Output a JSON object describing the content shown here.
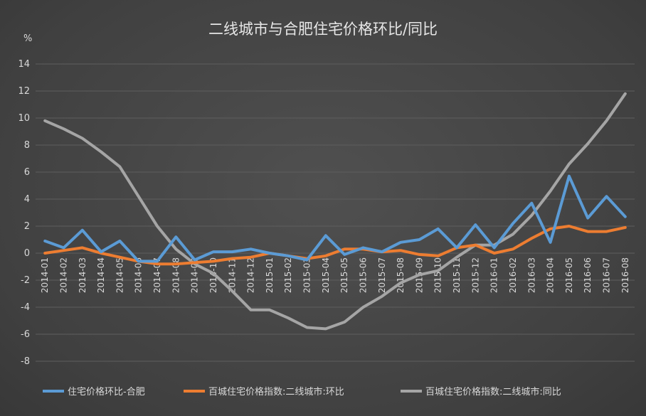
{
  "chart_data": {
    "type": "line",
    "title": "二线城市与合肥住宅价格环比/同比",
    "ylabel": "%",
    "xlabel": "",
    "ylim": [
      -8,
      14
    ],
    "yticks": [
      14,
      12,
      10,
      8,
      6,
      4,
      2,
      0,
      -2,
      -4,
      -6,
      -8
    ],
    "grid": true,
    "legend_position": "bottom",
    "categories": [
      "2014-01",
      "2014-02",
      "2014-03",
      "2014-04",
      "2014-05",
      "2014-06",
      "2014-07",
      "2014-08",
      "2014-09",
      "2014-10",
      "2014-11",
      "2014-12",
      "2015-01",
      "2015-02",
      "2015-03",
      "2015-04",
      "2015-05",
      "2015-06",
      "2015-07",
      "2015-08",
      "2015-09",
      "2015-10",
      "2015-11",
      "2015-12",
      "2016-01",
      "2016-02",
      "2016-03",
      "2016-04",
      "2016-05",
      "2016-06",
      "2016-07",
      "2016-08"
    ],
    "series": [
      {
        "name": "住宅价格环比-合肥",
        "color": "#5b9bd5",
        "values": [
          0.9,
          0.4,
          1.7,
          0.1,
          0.9,
          -0.6,
          -0.6,
          1.2,
          -0.5,
          0.1,
          0.1,
          0.3,
          0.0,
          -0.2,
          -0.5,
          1.3,
          -0.1,
          0.4,
          0.1,
          0.8,
          1.0,
          1.8,
          0.4,
          2.1,
          0.4,
          2.2,
          3.7,
          0.8,
          5.7,
          2.6,
          4.2,
          2.7
        ]
      },
      {
        "name": "百城住宅价格指数:二线城市:环比",
        "color": "#ed7d31",
        "values": [
          0.0,
          0.2,
          0.4,
          0.0,
          -0.3,
          -0.6,
          -0.8,
          -0.8,
          -0.7,
          -0.6,
          -0.4,
          -0.3,
          0.0,
          -0.2,
          -0.4,
          -0.2,
          0.3,
          0.3,
          0.1,
          0.2,
          -0.1,
          -0.2,
          0.4,
          0.6,
          0.0,
          0.3,
          1.1,
          1.8,
          2.0,
          1.6,
          1.6,
          1.9
        ]
      },
      {
        "name": "百城住宅价格指数:二线城市:同比",
        "color": "#a5a5a5",
        "values": [
          9.8,
          9.2,
          8.5,
          7.5,
          6.4,
          4.2,
          2.0,
          0.3,
          -0.8,
          -1.5,
          -2.8,
          -4.2,
          -4.2,
          -4.8,
          -5.5,
          -5.6,
          -5.1,
          -4.0,
          -3.2,
          -2.2,
          -1.6,
          -1.3,
          -0.3,
          0.6,
          0.6,
          1.4,
          2.8,
          4.6,
          6.6,
          8.1,
          9.8,
          11.8
        ]
      }
    ]
  }
}
